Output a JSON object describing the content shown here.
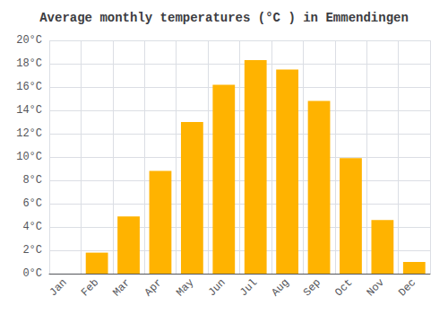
{
  "chart_data": {
    "type": "bar",
    "title": "Average monthly temperatures (°C ) in Emmendingen",
    "categories": [
      "Jan",
      "Feb",
      "Mar",
      "Apr",
      "May",
      "Jun",
      "Jul",
      "Aug",
      "Sep",
      "Oct",
      "Nov",
      "Dec"
    ],
    "values": [
      0,
      1.8,
      4.9,
      8.8,
      13.0,
      16.2,
      18.3,
      17.5,
      14.8,
      9.9,
      4.6,
      1.0
    ],
    "color": "#FFB300",
    "ylim": [
      0,
      20
    ],
    "yticks": [
      {
        "value": 0,
        "label": "0°C"
      },
      {
        "value": 2,
        "label": "2°C"
      },
      {
        "value": 4,
        "label": "4°C"
      },
      {
        "value": 6,
        "label": "6°C"
      },
      {
        "value": 8,
        "label": "8°C"
      },
      {
        "value": 10,
        "label": "10°C"
      },
      {
        "value": 12,
        "label": "12°C"
      },
      {
        "value": 14,
        "label": "14°C"
      },
      {
        "value": 16,
        "label": "16°C"
      },
      {
        "value": 18,
        "label": "18°C"
      },
      {
        "value": 20,
        "label": "20°C"
      }
    ],
    "grid": true
  }
}
